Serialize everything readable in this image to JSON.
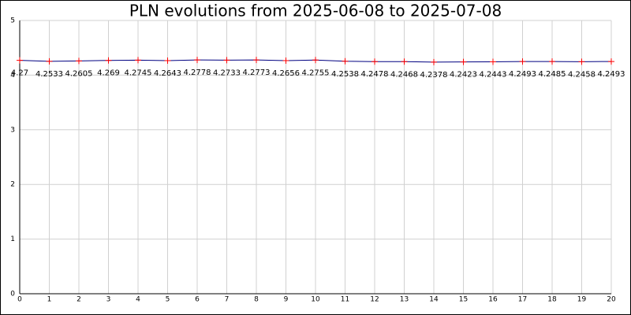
{
  "chart_data": {
    "type": "line",
    "title": "PLN evolutions from 2025-06-08 to 2025-07-08",
    "x": [
      0,
      1,
      2,
      3,
      4,
      5,
      6,
      7,
      8,
      9,
      10,
      11,
      12,
      13,
      14,
      15,
      16,
      17,
      18,
      19,
      20
    ],
    "values": [
      4.27,
      4.2533,
      4.2605,
      4.269,
      4.2745,
      4.2643,
      4.2778,
      4.2733,
      4.2773,
      4.2656,
      4.2755,
      4.2538,
      4.2478,
      4.2468,
      4.2378,
      4.2423,
      4.2443,
      4.2493,
      4.2485,
      4.2458,
      4.2493
    ],
    "color": "#000080",
    "marker_color": "#ff0000",
    "xlim": [
      0,
      20
    ],
    "xticks": [
      0,
      1,
      2,
      3,
      4,
      5,
      6,
      7,
      8,
      9,
      10,
      11,
      12,
      13,
      14,
      15,
      16,
      17,
      18,
      19,
      20
    ],
    "ylim": [
      0,
      5
    ],
    "yticks": [
      0,
      1,
      2,
      3,
      4,
      5
    ],
    "grid": true
  }
}
